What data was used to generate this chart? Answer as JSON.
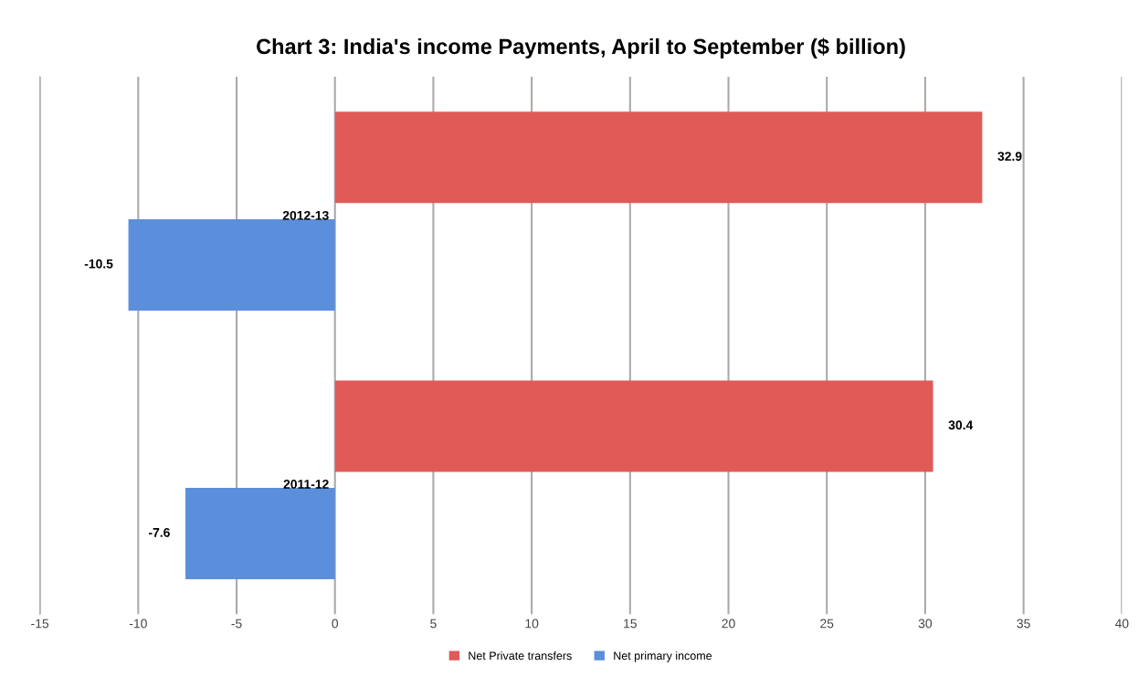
{
  "chart_data": {
    "type": "bar",
    "orientation": "horizontal",
    "title": "Chart 3: India's income Payments, April to September ($ billion)",
    "categories": [
      "2012-13",
      "2011-12"
    ],
    "series": [
      {
        "name": "Net Private transfers",
        "color": "#e05a58",
        "values": [
          32.9,
          30.4
        ]
      },
      {
        "name": "Net primary income",
        "color": "#5b8fdc",
        "values": [
          -10.5,
          -7.6
        ]
      }
    ],
    "xlim": [
      -15,
      40
    ],
    "xticks": [
      -15,
      -10,
      -5,
      0,
      5,
      10,
      15,
      20,
      25,
      30,
      35,
      40
    ],
    "grid": "x",
    "legend": "bottom",
    "data_labels": true
  }
}
